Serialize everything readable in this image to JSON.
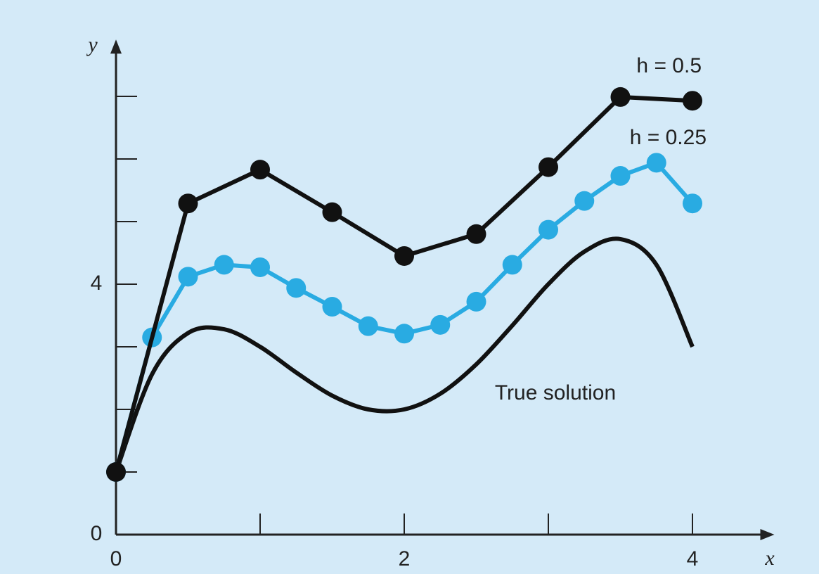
{
  "chart_data": {
    "type": "line",
    "x_label": "x",
    "y_label": "y",
    "xlim": [
      0,
      4.5
    ],
    "ylim": [
      0,
      7.75
    ],
    "xticks": [
      0,
      2,
      4
    ],
    "x_minor_ticks": [
      1,
      3
    ],
    "yticks": [
      0,
      4
    ],
    "y_minor_ticks": [
      1,
      2,
      3,
      5,
      6,
      7
    ],
    "series": [
      {
        "name": "True solution",
        "color": "#111111",
        "markers": false,
        "smooth": true,
        "x": [
          0,
          0.25,
          0.5,
          0.75,
          1,
          1.25,
          1.5,
          1.75,
          2,
          2.25,
          2.5,
          2.75,
          3,
          3.25,
          3.5,
          3.75,
          4
        ],
        "values": [
          1,
          2.56,
          3.22,
          3.28,
          3.0,
          2.59,
          2.22,
          2.0,
          2.0,
          2.25,
          2.72,
          3.34,
          4.0,
          4.52,
          4.72,
          4.31,
          3.0
        ]
      },
      {
        "name": "h = 0.25",
        "color": "#29abe2",
        "markers": true,
        "smooth": false,
        "x": [
          0,
          0.25,
          0.5,
          0.75,
          1,
          1.25,
          1.5,
          1.75,
          2,
          2.25,
          2.5,
          2.75,
          3,
          3.25,
          3.5,
          3.75,
          4
        ],
        "values": [
          1,
          3.15,
          4.12,
          4.31,
          4.27,
          3.94,
          3.64,
          3.33,
          3.21,
          3.35,
          3.72,
          4.31,
          4.87,
          5.33,
          5.73,
          5.94,
          5.29
        ]
      },
      {
        "name": "h = 0.5",
        "color": "#111111",
        "markers": true,
        "smooth": false,
        "x": [
          0,
          0.5,
          1,
          1.5,
          2,
          2.5,
          3,
          3.5,
          4
        ],
        "values": [
          1,
          5.29,
          5.83,
          5.15,
          4.45,
          4.8,
          5.87,
          6.99,
          6.93
        ]
      }
    ]
  }
}
